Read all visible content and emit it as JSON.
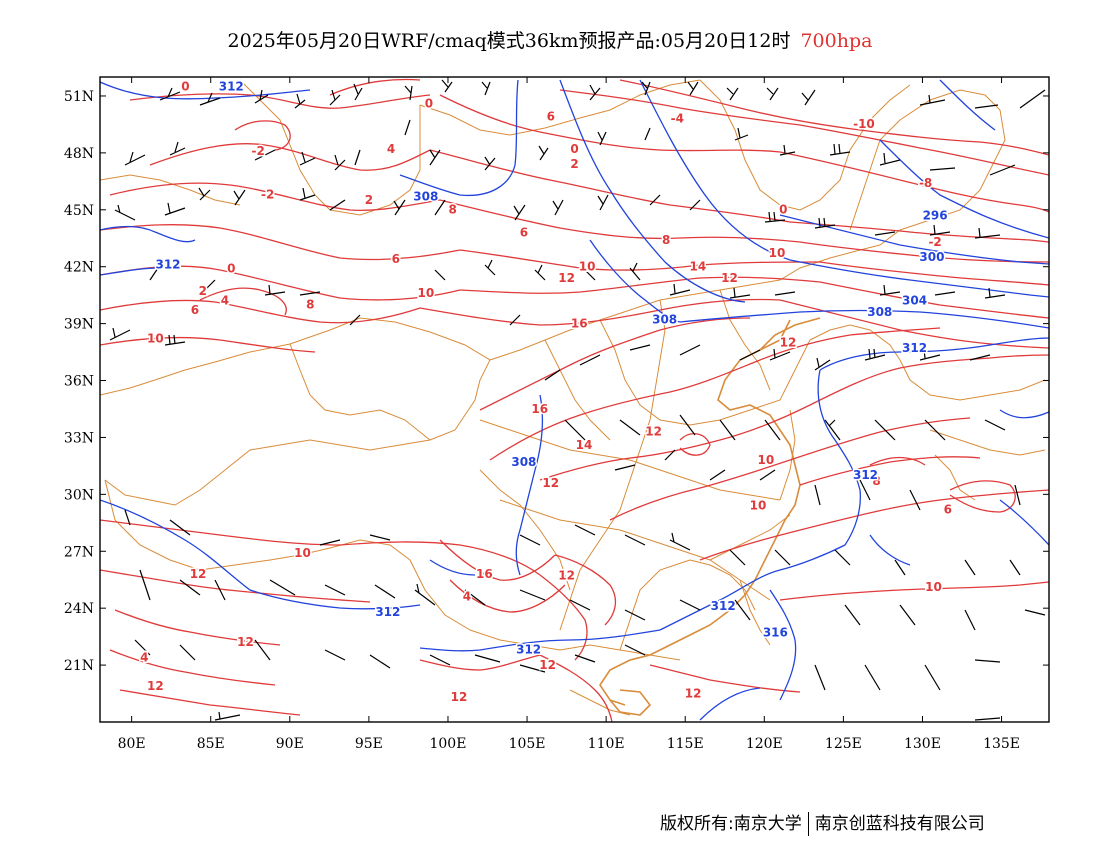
{
  "title": {
    "main": "2025年05月20日WRF/cmaq模式36km预报产品:05月20日12时",
    "level": "700hpa"
  },
  "footer": {
    "copyright": "版权所有:南京大学",
    "company": "南京创蓝科技有限公司"
  },
  "axes": {
    "lat_ticks": [
      "51N",
      "48N",
      "45N",
      "42N",
      "39N",
      "36N",
      "33N",
      "30N",
      "27N",
      "24N",
      "21N"
    ],
    "lat_values": [
      51,
      48,
      45,
      42,
      39,
      36,
      33,
      30,
      27,
      24,
      21
    ],
    "lon_ticks": [
      "80E",
      "85E",
      "90E",
      "95E",
      "100E",
      "105E",
      "110E",
      "115E",
      "120E",
      "125E",
      "130E",
      "135E"
    ],
    "lon_values": [
      80,
      85,
      90,
      95,
      100,
      105,
      110,
      115,
      120,
      125,
      130,
      135
    ],
    "lon_range": [
      78,
      138
    ],
    "lat_range": [
      18,
      52
    ]
  },
  "colors": {
    "temperature": "#e03a3a",
    "height": "#2244dd",
    "boundary": "#d98c3a",
    "wind": "#000000",
    "level_text": "#e03030"
  },
  "temp_labels": [
    {
      "text": "0",
      "lon": 83.4,
      "lat": 51.3
    },
    {
      "text": "-2",
      "lon": 88,
      "lat": 47.9
    },
    {
      "text": "-2",
      "lon": 88.6,
      "lat": 45.6
    },
    {
      "text": "0",
      "lon": 86.3,
      "lat": 41.7
    },
    {
      "text": "2",
      "lon": 84.5,
      "lat": 40.5
    },
    {
      "text": "4",
      "lon": 85.9,
      "lat": 40.0
    },
    {
      "text": "6",
      "lon": 84,
      "lat": 39.5
    },
    {
      "text": "8",
      "lon": 91.3,
      "lat": 39.8
    },
    {
      "text": "10",
      "lon": 81.5,
      "lat": 38.0
    },
    {
      "text": "0",
      "lon": 98.8,
      "lat": 50.4
    },
    {
      "text": "4",
      "lon": 96.4,
      "lat": 48.0
    },
    {
      "text": "2",
      "lon": 95,
      "lat": 45.3
    },
    {
      "text": "6",
      "lon": 96.7,
      "lat": 42.2
    },
    {
      "text": "8",
      "lon": 100.3,
      "lat": 44.8
    },
    {
      "text": "10",
      "lon": 98.6,
      "lat": 40.4
    },
    {
      "text": "6",
      "lon": 106.5,
      "lat": 49.7
    },
    {
      "text": "0",
      "lon": 108,
      "lat": 48.0
    },
    {
      "text": "2",
      "lon": 108,
      "lat": 47.2
    },
    {
      "text": "6",
      "lon": 104.8,
      "lat": 43.6
    },
    {
      "text": "10",
      "lon": 108.8,
      "lat": 41.8
    },
    {
      "text": "12",
      "lon": 107.5,
      "lat": 41.2
    },
    {
      "text": "-4",
      "lon": 114.5,
      "lat": 49.6
    },
    {
      "text": "8",
      "lon": 113.8,
      "lat": 43.2
    },
    {
      "text": "14",
      "lon": 115.8,
      "lat": 41.8
    },
    {
      "text": "12",
      "lon": 117.8,
      "lat": 41.2
    },
    {
      "text": "10",
      "lon": 120.8,
      "lat": 42.5
    },
    {
      "text": "16",
      "lon": 108.3,
      "lat": 38.8
    },
    {
      "text": "0",
      "lon": 121.2,
      "lat": 44.8
    },
    {
      "text": "-10",
      "lon": 126.3,
      "lat": 49.3
    },
    {
      "text": "-8",
      "lon": 130.2,
      "lat": 46.2
    },
    {
      "text": "-2",
      "lon": 130.8,
      "lat": 43.1
    },
    {
      "text": "12",
      "lon": 121.5,
      "lat": 37.8
    },
    {
      "text": "16",
      "lon": 105.8,
      "lat": 34.3
    },
    {
      "text": "14",
      "lon": 108.6,
      "lat": 32.4
    },
    {
      "text": "12",
      "lon": 113,
      "lat": 33.1
    },
    {
      "text": "12",
      "lon": 106.5,
      "lat": 30.4
    },
    {
      "text": "10",
      "lon": 120.1,
      "lat": 31.6
    },
    {
      "text": "8",
      "lon": 127.1,
      "lat": 30.5
    },
    {
      "text": "10",
      "lon": 119.6,
      "lat": 29.2
    },
    {
      "text": "6",
      "lon": 131.6,
      "lat": 29.0
    },
    {
      "text": "16",
      "lon": 102.3,
      "lat": 25.6
    },
    {
      "text": "12",
      "lon": 107.5,
      "lat": 25.5
    },
    {
      "text": "4",
      "lon": 101.2,
      "lat": 24.4
    },
    {
      "text": "12",
      "lon": 84.2,
      "lat": 25.6
    },
    {
      "text": "10",
      "lon": 90.8,
      "lat": 26.7
    },
    {
      "text": "12",
      "lon": 87.2,
      "lat": 22.0
    },
    {
      "text": "4",
      "lon": 80.8,
      "lat": 21.2
    },
    {
      "text": "12",
      "lon": 81.5,
      "lat": 19.7
    },
    {
      "text": "12",
      "lon": 100.7,
      "lat": 19.1
    },
    {
      "text": "12",
      "lon": 106.3,
      "lat": 20.8
    },
    {
      "text": "12",
      "lon": 115.5,
      "lat": 19.3
    },
    {
      "text": "10",
      "lon": 130.7,
      "lat": 24.9
    }
  ],
  "height_labels": [
    {
      "text": "312",
      "lon": 86.3,
      "lat": 51.3
    },
    {
      "text": "308",
      "lon": 98.6,
      "lat": 45.5
    },
    {
      "text": "312",
      "lon": 82.3,
      "lat": 41.9
    },
    {
      "text": "308",
      "lon": 113.7,
      "lat": 39.0
    },
    {
      "text": "296",
      "lon": 130.8,
      "lat": 44.5
    },
    {
      "text": "300",
      "lon": 130.6,
      "lat": 42.3
    },
    {
      "text": "304",
      "lon": 129.5,
      "lat": 40.0
    },
    {
      "text": "308",
      "lon": 127.3,
      "lat": 39.4
    },
    {
      "text": "312",
      "lon": 129.5,
      "lat": 37.5
    },
    {
      "text": "308",
      "lon": 104.8,
      "lat": 31.5
    },
    {
      "text": "312",
      "lon": 126.4,
      "lat": 30.8
    },
    {
      "text": "312",
      "lon": 117.4,
      "lat": 23.9
    },
    {
      "text": "312",
      "lon": 96.2,
      "lat": 23.6
    },
    {
      "text": "312",
      "lon": 105.1,
      "lat": 21.6
    },
    {
      "text": "316",
      "lon": 120.7,
      "lat": 22.5
    }
  ]
}
